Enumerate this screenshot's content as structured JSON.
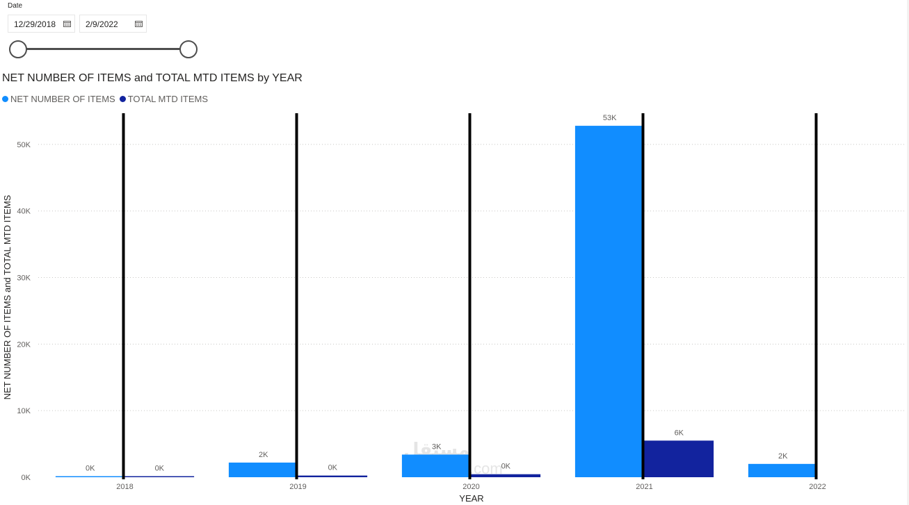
{
  "slicer": {
    "label": "Date",
    "start": "12/29/2018",
    "end": "2/9/2022",
    "calendar_icon": "calendar-icon"
  },
  "watermark": {
    "text": "مستقل",
    "sub": "mostaql.com"
  },
  "chart_data": {
    "type": "bar",
    "title": "NET NUMBER OF ITEMS and TOTAL MTD ITEMS by YEAR",
    "xlabel": "YEAR",
    "ylabel": "NET NUMBER OF ITEMS and TOTAL MTD ITEMS",
    "categories": [
      "2018",
      "2019",
      "2020",
      "2021",
      "2022"
    ],
    "series": [
      {
        "name": "NET NUMBER OF ITEMS",
        "color": "#118dff",
        "values": [
          120,
          2200,
          3400,
          52800,
          2000
        ],
        "labels": [
          "0K",
          "2K",
          "3K",
          "53K",
          "2K"
        ]
      },
      {
        "name": "TOTAL MTD ITEMS",
        "color": "#12239e",
        "values": [
          150,
          250,
          450,
          5500,
          null
        ],
        "labels": [
          "0K",
          "0K",
          "0K",
          "6K",
          ""
        ]
      }
    ],
    "ylim": [
      0,
      55000
    ],
    "yticks": [
      0,
      10000,
      20000,
      30000,
      40000,
      50000
    ],
    "ytick_labels": [
      "0K",
      "10K",
      "20K",
      "30K",
      "40K",
      "50K"
    ],
    "grid": true,
    "legend": "top-left",
    "reference_lines": {
      "color": "#000000",
      "at": [
        "2018",
        "2019",
        "2020",
        "2021",
        "2022"
      ]
    }
  }
}
